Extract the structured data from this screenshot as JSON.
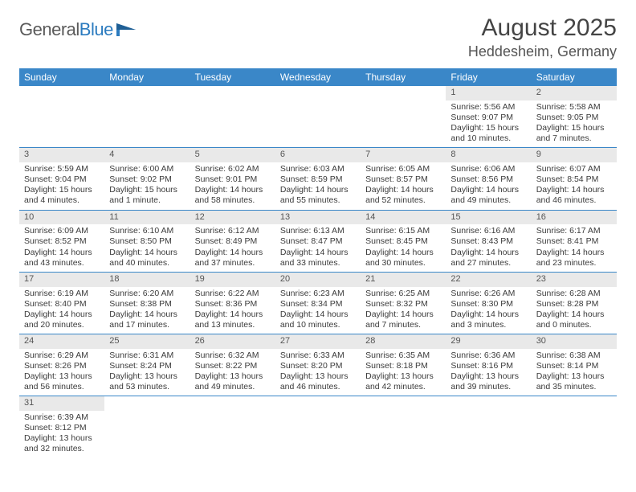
{
  "logo": {
    "text1": "General",
    "text2": "Blue",
    "color1": "#5a5a5a",
    "color2": "#2b7bbf"
  },
  "title": "August 2025",
  "location": "Heddesheim, Germany",
  "colors": {
    "header_bg": "#3a87c8",
    "header_fg": "#ffffff",
    "daynum_bg": "#e9e9e9",
    "border": "#3a87c8"
  },
  "dayHeaders": [
    "Sunday",
    "Monday",
    "Tuesday",
    "Wednesday",
    "Thursday",
    "Friday",
    "Saturday"
  ],
  "weeks": [
    [
      {
        "n": "",
        "sr": "",
        "ss": "",
        "dl": ""
      },
      {
        "n": "",
        "sr": "",
        "ss": "",
        "dl": ""
      },
      {
        "n": "",
        "sr": "",
        "ss": "",
        "dl": ""
      },
      {
        "n": "",
        "sr": "",
        "ss": "",
        "dl": ""
      },
      {
        "n": "",
        "sr": "",
        "ss": "",
        "dl": ""
      },
      {
        "n": "1",
        "sr": "Sunrise: 5:56 AM",
        "ss": "Sunset: 9:07 PM",
        "dl": "Daylight: 15 hours and 10 minutes."
      },
      {
        "n": "2",
        "sr": "Sunrise: 5:58 AM",
        "ss": "Sunset: 9:05 PM",
        "dl": "Daylight: 15 hours and 7 minutes."
      }
    ],
    [
      {
        "n": "3",
        "sr": "Sunrise: 5:59 AM",
        "ss": "Sunset: 9:04 PM",
        "dl": "Daylight: 15 hours and 4 minutes."
      },
      {
        "n": "4",
        "sr": "Sunrise: 6:00 AM",
        "ss": "Sunset: 9:02 PM",
        "dl": "Daylight: 15 hours and 1 minute."
      },
      {
        "n": "5",
        "sr": "Sunrise: 6:02 AM",
        "ss": "Sunset: 9:01 PM",
        "dl": "Daylight: 14 hours and 58 minutes."
      },
      {
        "n": "6",
        "sr": "Sunrise: 6:03 AM",
        "ss": "Sunset: 8:59 PM",
        "dl": "Daylight: 14 hours and 55 minutes."
      },
      {
        "n": "7",
        "sr": "Sunrise: 6:05 AM",
        "ss": "Sunset: 8:57 PM",
        "dl": "Daylight: 14 hours and 52 minutes."
      },
      {
        "n": "8",
        "sr": "Sunrise: 6:06 AM",
        "ss": "Sunset: 8:56 PM",
        "dl": "Daylight: 14 hours and 49 minutes."
      },
      {
        "n": "9",
        "sr": "Sunrise: 6:07 AM",
        "ss": "Sunset: 8:54 PM",
        "dl": "Daylight: 14 hours and 46 minutes."
      }
    ],
    [
      {
        "n": "10",
        "sr": "Sunrise: 6:09 AM",
        "ss": "Sunset: 8:52 PM",
        "dl": "Daylight: 14 hours and 43 minutes."
      },
      {
        "n": "11",
        "sr": "Sunrise: 6:10 AM",
        "ss": "Sunset: 8:50 PM",
        "dl": "Daylight: 14 hours and 40 minutes."
      },
      {
        "n": "12",
        "sr": "Sunrise: 6:12 AM",
        "ss": "Sunset: 8:49 PM",
        "dl": "Daylight: 14 hours and 37 minutes."
      },
      {
        "n": "13",
        "sr": "Sunrise: 6:13 AM",
        "ss": "Sunset: 8:47 PM",
        "dl": "Daylight: 14 hours and 33 minutes."
      },
      {
        "n": "14",
        "sr": "Sunrise: 6:15 AM",
        "ss": "Sunset: 8:45 PM",
        "dl": "Daylight: 14 hours and 30 minutes."
      },
      {
        "n": "15",
        "sr": "Sunrise: 6:16 AM",
        "ss": "Sunset: 8:43 PM",
        "dl": "Daylight: 14 hours and 27 minutes."
      },
      {
        "n": "16",
        "sr": "Sunrise: 6:17 AM",
        "ss": "Sunset: 8:41 PM",
        "dl": "Daylight: 14 hours and 23 minutes."
      }
    ],
    [
      {
        "n": "17",
        "sr": "Sunrise: 6:19 AM",
        "ss": "Sunset: 8:40 PM",
        "dl": "Daylight: 14 hours and 20 minutes."
      },
      {
        "n": "18",
        "sr": "Sunrise: 6:20 AM",
        "ss": "Sunset: 8:38 PM",
        "dl": "Daylight: 14 hours and 17 minutes."
      },
      {
        "n": "19",
        "sr": "Sunrise: 6:22 AM",
        "ss": "Sunset: 8:36 PM",
        "dl": "Daylight: 14 hours and 13 minutes."
      },
      {
        "n": "20",
        "sr": "Sunrise: 6:23 AM",
        "ss": "Sunset: 8:34 PM",
        "dl": "Daylight: 14 hours and 10 minutes."
      },
      {
        "n": "21",
        "sr": "Sunrise: 6:25 AM",
        "ss": "Sunset: 8:32 PM",
        "dl": "Daylight: 14 hours and 7 minutes."
      },
      {
        "n": "22",
        "sr": "Sunrise: 6:26 AM",
        "ss": "Sunset: 8:30 PM",
        "dl": "Daylight: 14 hours and 3 minutes."
      },
      {
        "n": "23",
        "sr": "Sunrise: 6:28 AM",
        "ss": "Sunset: 8:28 PM",
        "dl": "Daylight: 14 hours and 0 minutes."
      }
    ],
    [
      {
        "n": "24",
        "sr": "Sunrise: 6:29 AM",
        "ss": "Sunset: 8:26 PM",
        "dl": "Daylight: 13 hours and 56 minutes."
      },
      {
        "n": "25",
        "sr": "Sunrise: 6:31 AM",
        "ss": "Sunset: 8:24 PM",
        "dl": "Daylight: 13 hours and 53 minutes."
      },
      {
        "n": "26",
        "sr": "Sunrise: 6:32 AM",
        "ss": "Sunset: 8:22 PM",
        "dl": "Daylight: 13 hours and 49 minutes."
      },
      {
        "n": "27",
        "sr": "Sunrise: 6:33 AM",
        "ss": "Sunset: 8:20 PM",
        "dl": "Daylight: 13 hours and 46 minutes."
      },
      {
        "n": "28",
        "sr": "Sunrise: 6:35 AM",
        "ss": "Sunset: 8:18 PM",
        "dl": "Daylight: 13 hours and 42 minutes."
      },
      {
        "n": "29",
        "sr": "Sunrise: 6:36 AM",
        "ss": "Sunset: 8:16 PM",
        "dl": "Daylight: 13 hours and 39 minutes."
      },
      {
        "n": "30",
        "sr": "Sunrise: 6:38 AM",
        "ss": "Sunset: 8:14 PM",
        "dl": "Daylight: 13 hours and 35 minutes."
      }
    ],
    [
      {
        "n": "31",
        "sr": "Sunrise: 6:39 AM",
        "ss": "Sunset: 8:12 PM",
        "dl": "Daylight: 13 hours and 32 minutes."
      },
      {
        "n": "",
        "sr": "",
        "ss": "",
        "dl": ""
      },
      {
        "n": "",
        "sr": "",
        "ss": "",
        "dl": ""
      },
      {
        "n": "",
        "sr": "",
        "ss": "",
        "dl": ""
      },
      {
        "n": "",
        "sr": "",
        "ss": "",
        "dl": ""
      },
      {
        "n": "",
        "sr": "",
        "ss": "",
        "dl": ""
      },
      {
        "n": "",
        "sr": "",
        "ss": "",
        "dl": ""
      }
    ]
  ]
}
